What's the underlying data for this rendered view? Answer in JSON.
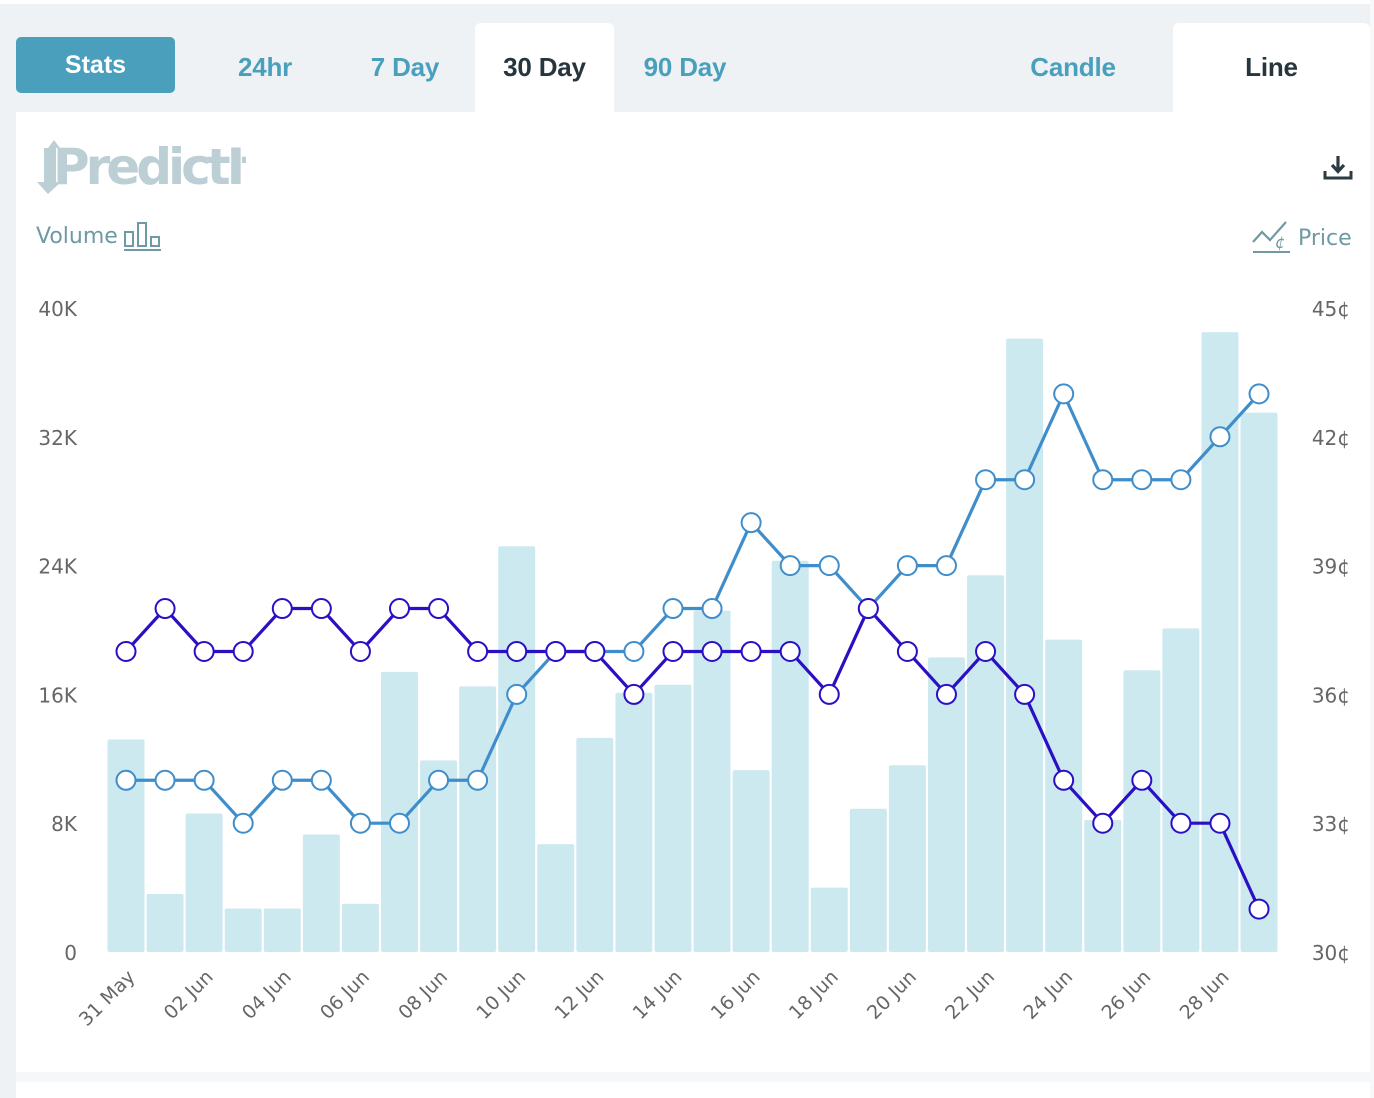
{
  "tabs": {
    "stats_label": "Stats",
    "range": [
      {
        "label": "24hr",
        "active": false
      },
      {
        "label": "7 Day",
        "active": false
      },
      {
        "label": "30 Day",
        "active": true
      },
      {
        "label": "90 Day",
        "active": false
      }
    ],
    "type": [
      {
        "label": "Candle",
        "active": false
      },
      {
        "label": "Line",
        "active": true
      }
    ]
  },
  "brand": {
    "logo_text": "PredictIt"
  },
  "icons": {
    "download": "download-icon",
    "volume": "bar-chart-icon",
    "price": "line-cent-icon"
  },
  "legend": {
    "volume_label": "Volume",
    "price_label": "Price"
  },
  "colors": {
    "accent": "#4a9fbd",
    "bars": "#cde9f0",
    "series_light": "#3f8ecb",
    "series_dark": "#2a10c4",
    "axis_text": "#666666"
  },
  "chart_data": {
    "type": "bar+line",
    "title": "",
    "x": [
      "31 May",
      "01 Jun",
      "02 Jun",
      "03 Jun",
      "04 Jun",
      "05 Jun",
      "06 Jun",
      "07 Jun",
      "08 Jun",
      "09 Jun",
      "10 Jun",
      "11 Jun",
      "12 Jun",
      "13 Jun",
      "14 Jun",
      "15 Jun",
      "16 Jun",
      "17 Jun",
      "18 Jun",
      "19 Jun",
      "20 Jun",
      "21 Jun",
      "22 Jun",
      "23 Jun",
      "24 Jun",
      "25 Jun",
      "26 Jun",
      "27 Jun",
      "28 Jun",
      "29 Jun"
    ],
    "x_tick_labels": [
      "31 May",
      "02 Jun",
      "04 Jun",
      "06 Jun",
      "08 Jun",
      "10 Jun",
      "12 Jun",
      "14 Jun",
      "16 Jun",
      "18 Jun",
      "20 Jun",
      "22 Jun",
      "24 Jun",
      "26 Jun",
      "28 Jun"
    ],
    "left_axis": {
      "label": "Volume",
      "ylim": [
        0,
        40000
      ],
      "ticks": [
        "0",
        "8K",
        "16K",
        "24K",
        "32K",
        "40K"
      ]
    },
    "right_axis": {
      "label": "Price",
      "ylim": [
        30,
        45
      ],
      "ticks": [
        "30¢",
        "33¢",
        "36¢",
        "39¢",
        "42¢",
        "45¢"
      ]
    },
    "volume": [
      13200,
      3600,
      8600,
      2700,
      2700,
      7300,
      3000,
      17400,
      11900,
      16500,
      25200,
      6700,
      13300,
      16100,
      16600,
      21200,
      11300,
      24300,
      4000,
      8900,
      11600,
      18300,
      23400,
      38100,
      19400,
      8200,
      17500,
      20100,
      38500,
      33500
    ],
    "series": [
      {
        "name": "light",
        "axis": "right",
        "values": [
          34,
          34,
          34,
          33,
          34,
          34,
          33,
          33,
          34,
          34,
          36,
          37,
          37,
          37,
          38,
          38,
          40,
          39,
          39,
          38,
          39,
          39,
          41,
          41,
          43,
          41,
          41,
          41,
          42,
          43
        ]
      },
      {
        "name": "dark",
        "axis": "right",
        "values": [
          37,
          38,
          37,
          37,
          38,
          38,
          37,
          38,
          38,
          37,
          37,
          37,
          37,
          36,
          37,
          37,
          37,
          37,
          36,
          38,
          37,
          36,
          37,
          36,
          34,
          33,
          34,
          33,
          33,
          31
        ]
      }
    ],
    "grid": false,
    "legend": "top"
  }
}
